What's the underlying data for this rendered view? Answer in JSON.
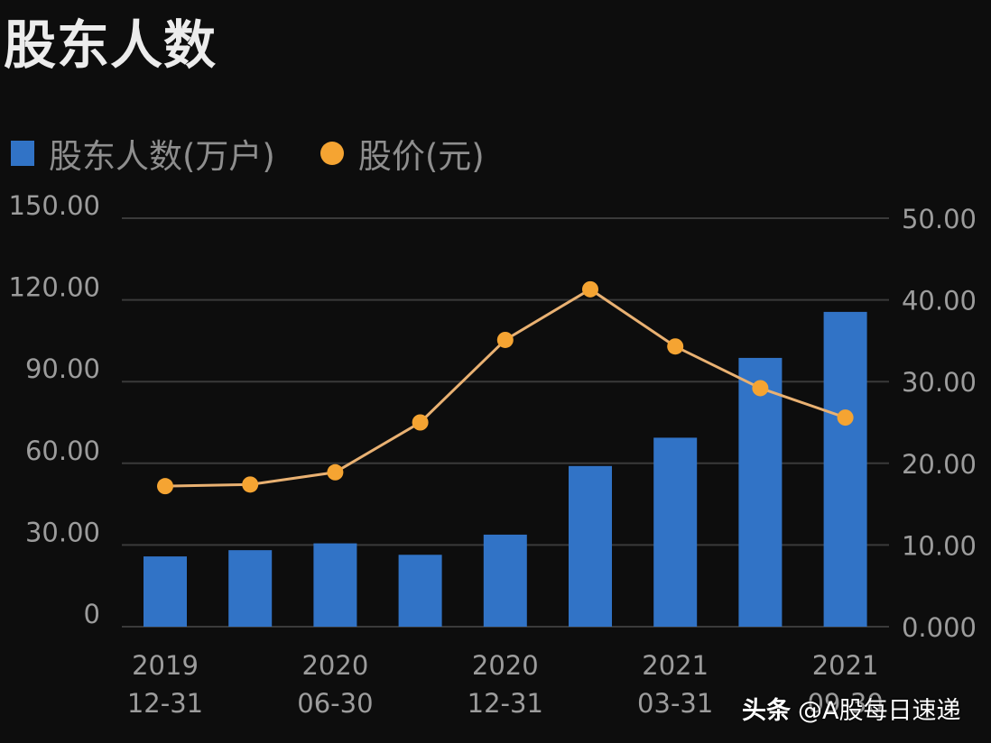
{
  "title": "股东人数",
  "legend": {
    "bar_label": "股东人数(万户)",
    "line_label": "股价(元)"
  },
  "watermark": {
    "brand": "头条",
    "handle": "@A股每日速递"
  },
  "colors": {
    "background": "#0d0d0d",
    "bar": "#3173c6",
    "line": "#e9b172",
    "dot": "#f5a432",
    "grid": "#3a3a3a",
    "axis_text": "#9c9c9c"
  },
  "chart_data": {
    "type": "bar",
    "title": "股东人数",
    "categories": [
      [
        "2019",
        "12-31"
      ],
      [
        "",
        ""
      ],
      [
        "2020",
        "06-30"
      ],
      [
        "",
        ""
      ],
      [
        "2020",
        "12-31"
      ],
      [
        "",
        ""
      ],
      [
        "2021",
        "03-31"
      ],
      [
        "",
        ""
      ],
      [
        "2021",
        "09-30"
      ]
    ],
    "series": [
      {
        "name": "股东人数(万户)",
        "type": "bar",
        "axis": "left",
        "values": [
          25.8,
          28.1,
          30.6,
          26.4,
          33.8,
          59.0,
          69.4,
          98.7,
          115.6
        ]
      },
      {
        "name": "股价(元)",
        "type": "line",
        "axis": "right",
        "values": [
          17.2,
          17.4,
          18.9,
          25.0,
          35.1,
          41.3,
          34.3,
          29.2,
          25.6
        ]
      }
    ],
    "y_left": {
      "ylim": [
        0,
        150
      ],
      "ticks": [
        0,
        30,
        60,
        90,
        120,
        150
      ],
      "tick_labels": [
        "0",
        "30.00",
        "60.00",
        "90.00",
        "120.00",
        "150.00"
      ]
    },
    "y_right": {
      "ylim": [
        0,
        50
      ],
      "ticks": [
        0,
        10,
        20,
        30,
        40,
        50
      ],
      "tick_labels": [
        "0.000",
        "10.00",
        "20.00",
        "30.00",
        "40.00",
        "50.00"
      ]
    },
    "xlabel": "",
    "grid": true,
    "legend_position": "top-left"
  }
}
